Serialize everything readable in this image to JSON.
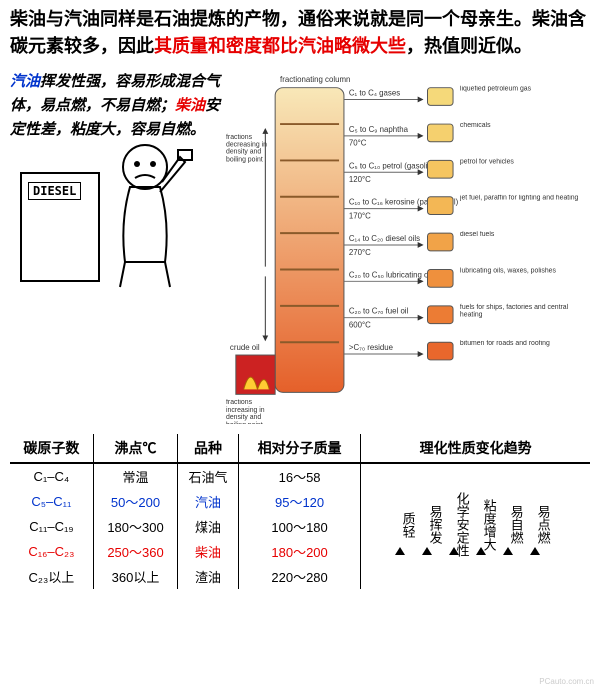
{
  "intro": {
    "p1a": "柴油与汽油同样是石油提炼的产物，通俗来说就是同一个母亲生。柴油含碳元素较多，因此",
    "p1b": "其质量和密度都比汽油略微大些",
    "p1c": "，热值则近似。"
  },
  "side": {
    "w1": "汽油",
    "t1": "挥发性强，容易形成混合气体，易点燃，不易自燃；",
    "w2": "柴油",
    "t2": "安定性差，粘度大，容易自燃。"
  },
  "diesel": {
    "label": "DIESEL"
  },
  "column": {
    "top_label": "fractionating column",
    "crude_label": "crude oil",
    "left_top": "fractions decreasing in density and boiling point",
    "left_bot": "fractions increasing in density and boiling point",
    "rows": [
      {
        "frac": "C₁ to C₄ gases",
        "temp": "",
        "prod": "liquefied petroleum gas",
        "color": "#f5d97a"
      },
      {
        "frac": "C₅ to C₉ naphtha",
        "temp": "70°C",
        "prod": "chemicals",
        "color": "#f5d06e"
      },
      {
        "frac": "C₅ to C₁₀ petrol (gasoline)",
        "temp": "120°C",
        "prod": "petrol for vehicles",
        "color": "#f5c560"
      },
      {
        "frac": "C₁₀ to C₁₆ kerosine (paraffin oil)",
        "temp": "170°C",
        "prod": "jet fuel, paraffin for lighting and heating",
        "color": "#f3b755"
      },
      {
        "frac": "C₁₄ to C₂₀ diesel oils",
        "temp": "270°C",
        "prod": "diesel fuels",
        "color": "#f1a348"
      },
      {
        "frac": "C₂₀ to C₅₀ lubricating oil",
        "temp": "",
        "prod": "lubricating oils, waxes, polishes",
        "color": "#ef903d"
      },
      {
        "frac": "C₂₀ to C₇₀ fuel oil",
        "temp": "600°C",
        "prod": "fuels for ships, factories and central heating",
        "color": "#ec7c34"
      },
      {
        "frac": ">C₇₀ residue",
        "temp": "",
        "prod": "bitumen for roads and roofing",
        "color": "#e9672c"
      }
    ]
  },
  "table": {
    "headers": [
      "碳原子数",
      "沸点℃",
      "品种",
      "相对分子质量",
      "理化性质变化趋势"
    ],
    "rows": [
      {
        "c": "C₁–C₄",
        "bp": "常温",
        "name": "石油气",
        "mw": "16～58",
        "cls": ""
      },
      {
        "c": "C₅–C₁₁",
        "bp": "50～200",
        "name": "汽油",
        "mw": "95～120",
        "cls": "blue"
      },
      {
        "c": "C₁₁–C₁₉",
        "bp": "180～300",
        "name": "煤油",
        "mw": "100～180",
        "cls": ""
      },
      {
        "c": "C₁₆–C₂₃",
        "bp": "250～360",
        "name": "柴油",
        "mw": "180～200",
        "cls": "red"
      },
      {
        "c": "C₂₃以上",
        "bp": "360以上",
        "name": "渣油",
        "mw": "220～280",
        "cls": ""
      }
    ],
    "trends": [
      "质轻",
      "易挥发",
      "化学安定性",
      "粘度增大",
      "易自燃",
      "易点燃"
    ]
  },
  "colors": {
    "red": "#e60000",
    "blue": "#0033cc"
  },
  "watermark": "PCauto.com.cn"
}
